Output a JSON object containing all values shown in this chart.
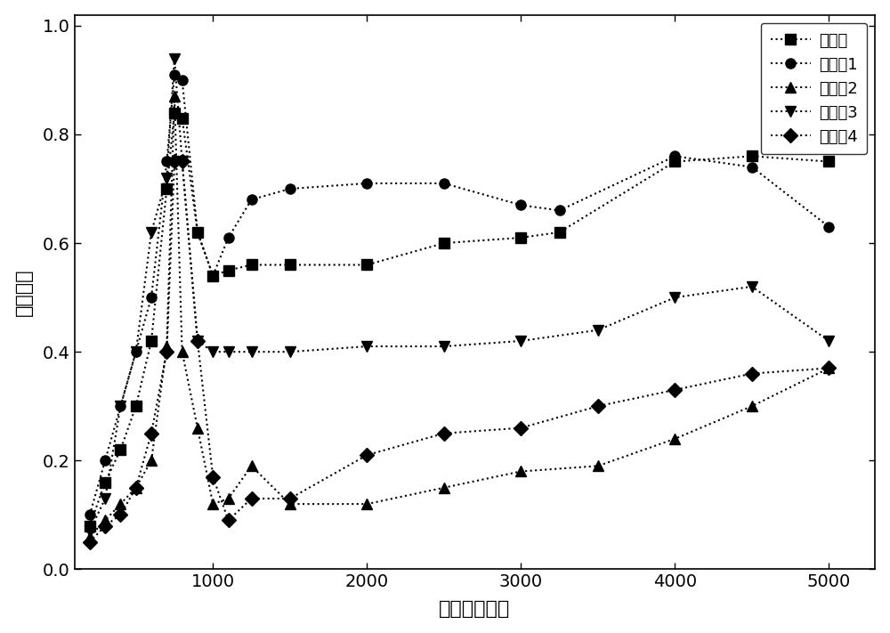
{
  "title": "",
  "xlabel": "频率（赫兹）",
  "ylabel": "吸声系数",
  "xlim": [
    100,
    5300
  ],
  "ylim": [
    0.0,
    1.02
  ],
  "xticks": [
    1000,
    2000,
    3000,
    4000,
    5000
  ],
  "yticks": [
    0.0,
    0.2,
    0.4,
    0.6,
    0.8,
    1.0
  ],
  "series": [
    {
      "label": "对照例",
      "marker": "s",
      "x": [
        200,
        300,
        400,
        500,
        600,
        700,
        750,
        800,
        900,
        1000,
        1100,
        1250,
        1500,
        2000,
        2500,
        3000,
        3250,
        4000,
        4500,
        5000
      ],
      "y": [
        0.08,
        0.16,
        0.22,
        0.3,
        0.42,
        0.7,
        0.84,
        0.83,
        0.62,
        0.54,
        0.55,
        0.56,
        0.56,
        0.56,
        0.6,
        0.61,
        0.62,
        0.75,
        0.76,
        0.75
      ]
    },
    {
      "label": "实施例1",
      "marker": "o",
      "x": [
        200,
        300,
        400,
        500,
        600,
        700,
        750,
        800,
        900,
        1000,
        1100,
        1250,
        1500,
        2000,
        2500,
        3000,
        3250,
        4000,
        4500,
        5000
      ],
      "y": [
        0.1,
        0.2,
        0.3,
        0.4,
        0.5,
        0.75,
        0.91,
        0.9,
        0.62,
        0.54,
        0.61,
        0.68,
        0.7,
        0.71,
        0.71,
        0.67,
        0.66,
        0.76,
        0.74,
        0.63
      ]
    },
    {
      "label": "实施例2",
      "marker": "^",
      "x": [
        200,
        300,
        400,
        500,
        600,
        700,
        750,
        800,
        900,
        1000,
        1100,
        1250,
        1500,
        2000,
        2500,
        3000,
        3500,
        4000,
        4500,
        5000
      ],
      "y": [
        0.06,
        0.09,
        0.12,
        0.15,
        0.2,
        0.41,
        0.87,
        0.4,
        0.26,
        0.12,
        0.13,
        0.19,
        0.12,
        0.12,
        0.15,
        0.18,
        0.19,
        0.24,
        0.3,
        0.37
      ]
    },
    {
      "label": "实施例3",
      "marker": "v",
      "x": [
        200,
        300,
        400,
        500,
        600,
        700,
        750,
        800,
        900,
        1000,
        1100,
        1250,
        1500,
        2000,
        2500,
        3000,
        3500,
        4000,
        4500,
        5000
      ],
      "y": [
        0.07,
        0.13,
        0.3,
        0.4,
        0.62,
        0.72,
        0.94,
        0.75,
        0.42,
        0.4,
        0.4,
        0.4,
        0.4,
        0.41,
        0.41,
        0.42,
        0.44,
        0.5,
        0.52,
        0.42
      ]
    },
    {
      "label": "实施例4",
      "marker": "D",
      "x": [
        200,
        300,
        400,
        500,
        600,
        700,
        750,
        800,
        900,
        1000,
        1100,
        1250,
        1500,
        2000,
        2500,
        3000,
        3500,
        4000,
        4500,
        5000
      ],
      "y": [
        0.05,
        0.08,
        0.1,
        0.15,
        0.25,
        0.4,
        0.75,
        0.75,
        0.42,
        0.17,
        0.09,
        0.13,
        0.13,
        0.21,
        0.25,
        0.26,
        0.3,
        0.33,
        0.36,
        0.37
      ]
    }
  ],
  "legend_loc": "upper right",
  "background_color": "#ffffff",
  "line_color": "#000000",
  "linestyle": "dotted",
  "markersize": 8,
  "linewidth": 1.5
}
